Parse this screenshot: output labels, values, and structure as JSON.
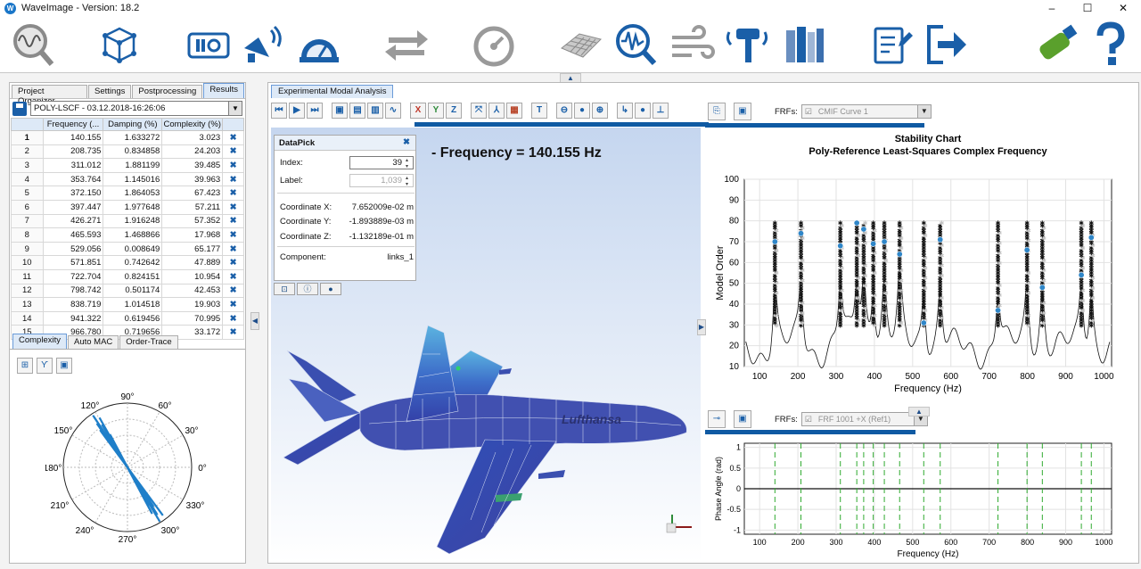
{
  "window": {
    "title": "WaveImage  - Version: 18.2",
    "app_icon_letter": "W",
    "minimize": "–",
    "maximize": "☐",
    "close": "✕"
  },
  "toolbar": {
    "icons": [
      "wave-analysis-icon",
      "cube-geometry-icon",
      "measurement-frontend-icon",
      "speaker-excitation-icon",
      "gauge-dial-icon",
      "transfer-arrows-icon",
      "speedometer-icon",
      "mesh-surface-icon",
      "signal-search-icon",
      "wind-icon",
      "hammer-icon",
      "library-books-icon",
      "report-edit-icon",
      "export-arrow-icon",
      "usb-stick-icon",
      "help-icon"
    ]
  },
  "left": {
    "tabs": [
      "Project Organizer",
      "Settings",
      "Postprocessing",
      "Results"
    ],
    "active_tab": "Results",
    "selector": "POLY-LSCF - 03.12.2018-16:26:06",
    "columns": [
      "",
      "Frequency (...",
      "Damping (%)",
      "Complexity (%)",
      ""
    ],
    "rows": [
      {
        "i": "1",
        "f": "140.155",
        "d": "1.633272",
        "c": "3.023"
      },
      {
        "i": "2",
        "f": "208.735",
        "d": "0.834858",
        "c": "24.203"
      },
      {
        "i": "3",
        "f": "311.012",
        "d": "1.881199",
        "c": "39.485"
      },
      {
        "i": "4",
        "f": "353.764",
        "d": "1.145016",
        "c": "39.963"
      },
      {
        "i": "5",
        "f": "372.150",
        "d": "1.864053",
        "c": "67.423"
      },
      {
        "i": "6",
        "f": "397.447",
        "d": "1.977648",
        "c": "57.211"
      },
      {
        "i": "7",
        "f": "426.271",
        "d": "1.916248",
        "c": "57.352"
      },
      {
        "i": "8",
        "f": "465.593",
        "d": "1.468866",
        "c": "17.968"
      },
      {
        "i": "9",
        "f": "529.056",
        "d": "0.008649",
        "c": "65.177"
      },
      {
        "i": "10",
        "f": "571.851",
        "d": "0.742642",
        "c": "47.889"
      },
      {
        "i": "11",
        "f": "722.704",
        "d": "0.824151",
        "c": "10.954"
      },
      {
        "i": "12",
        "f": "798.742",
        "d": "0.501174",
        "c": "42.453"
      },
      {
        "i": "13",
        "f": "838.719",
        "d": "1.014518",
        "c": "19.903"
      },
      {
        "i": "14",
        "f": "941.322",
        "d": "0.619456",
        "c": "70.995"
      },
      {
        "i": "15",
        "f": "966.780",
        "d": "0.719656",
        "c": "33.172"
      }
    ],
    "delete_glyph": "✖",
    "subtabs": [
      "Complexity",
      "Auto MAC",
      "Order-Trace"
    ],
    "active_subtab": "Complexity",
    "polar_labels": [
      "90°",
      "60°",
      "30°",
      "0°",
      "330°",
      "300°",
      "270°",
      "240°",
      "210°",
      "180°",
      "150°",
      "120°"
    ]
  },
  "main": {
    "tab": "Experimental Modal Analysis",
    "toolbar_labels": [
      "⏮",
      "▶",
      "⏭",
      "",
      "",
      "",
      "∿",
      "X",
      "Y",
      "Z",
      "",
      "",
      "",
      "T",
      "⊖",
      "●",
      "⊕",
      "",
      "●",
      ""
    ],
    "frequency_title": "- Frequency = 140.155 Hz",
    "datapick": {
      "title": "DataPick",
      "index_label": "Index:",
      "index_value": "39",
      "label_label": "Label:",
      "label_value": "1,039",
      "cx_label": "Coordinate X:",
      "cx_value": "7.652009e-02 m",
      "cy_label": "Coordinate Y:",
      "cy_value": "-1.893889e-03 m",
      "cz_label": "Coordinate Z:",
      "cz_value": "-1.132189e-01 m",
      "comp_label": "Component:",
      "comp_value": "links_1"
    },
    "aircraft_logo": "Lufthansa"
  },
  "stability": {
    "frfs_label": "FRFs:",
    "curve_select": "CMIF Curve 1",
    "title": "Stability Chart",
    "subtitle": "Poly-Reference Least-Squares Complex Frequency",
    "xlabel": "Frequency (Hz)",
    "ylabel": "Model Order",
    "x_ticks": [
      "100",
      "200",
      "300",
      "400",
      "500",
      "600",
      "700",
      "800",
      "900",
      "1000"
    ],
    "y_ticks": [
      "10",
      "20",
      "30",
      "40",
      "50",
      "60",
      "70",
      "80",
      "90",
      "100"
    ]
  },
  "phase": {
    "frfs_label": "FRFs:",
    "frf_select": "FRF 1001 +X (Ref1)",
    "xlabel": "Frequency (Hz)",
    "ylabel": "Phase Angle (rad)",
    "x_ticks": [
      "100",
      "200",
      "300",
      "400",
      "500",
      "600",
      "700",
      "800",
      "900",
      "1000"
    ],
    "y_ticks": [
      "1",
      "0.5",
      "0",
      "-0.5",
      "-1"
    ]
  },
  "chart_data": [
    {
      "type": "scatter",
      "title": "Stability Chart",
      "subtitle": "Poly-Reference Least-Squares Complex Frequency",
      "xlabel": "Frequency (Hz)",
      "ylabel": "Model Order",
      "xlim": [
        60,
        1020
      ],
      "ylim": [
        10,
        100
      ],
      "stable_pole_frequencies": [
        140,
        208,
        311,
        354,
        372,
        397,
        426,
        466,
        529,
        572,
        723,
        799,
        839,
        941,
        967
      ],
      "order_range": [
        30,
        80
      ],
      "highlighted": [
        [
          140,
          70
        ],
        [
          208,
          74
        ],
        [
          311,
          68
        ],
        [
          354,
          79
        ],
        [
          372,
          76
        ],
        [
          397,
          69
        ],
        [
          426,
          70
        ],
        [
          466,
          64
        ],
        [
          529,
          31
        ],
        [
          572,
          71
        ],
        [
          723,
          37
        ],
        [
          799,
          66
        ],
        [
          839,
          48
        ],
        [
          941,
          54
        ],
        [
          967,
          72
        ]
      ],
      "grid": true
    },
    {
      "type": "line",
      "xlabel": "Frequency (Hz)",
      "ylabel": "Phase Angle (rad)",
      "xlim": [
        60,
        1020
      ],
      "ylim": [
        -1.1,
        1.1
      ],
      "dashed_lines_at": [
        140,
        208,
        311,
        354,
        372,
        397,
        426,
        466,
        529,
        572,
        723,
        799,
        839,
        941,
        967
      ],
      "grid": true
    }
  ]
}
